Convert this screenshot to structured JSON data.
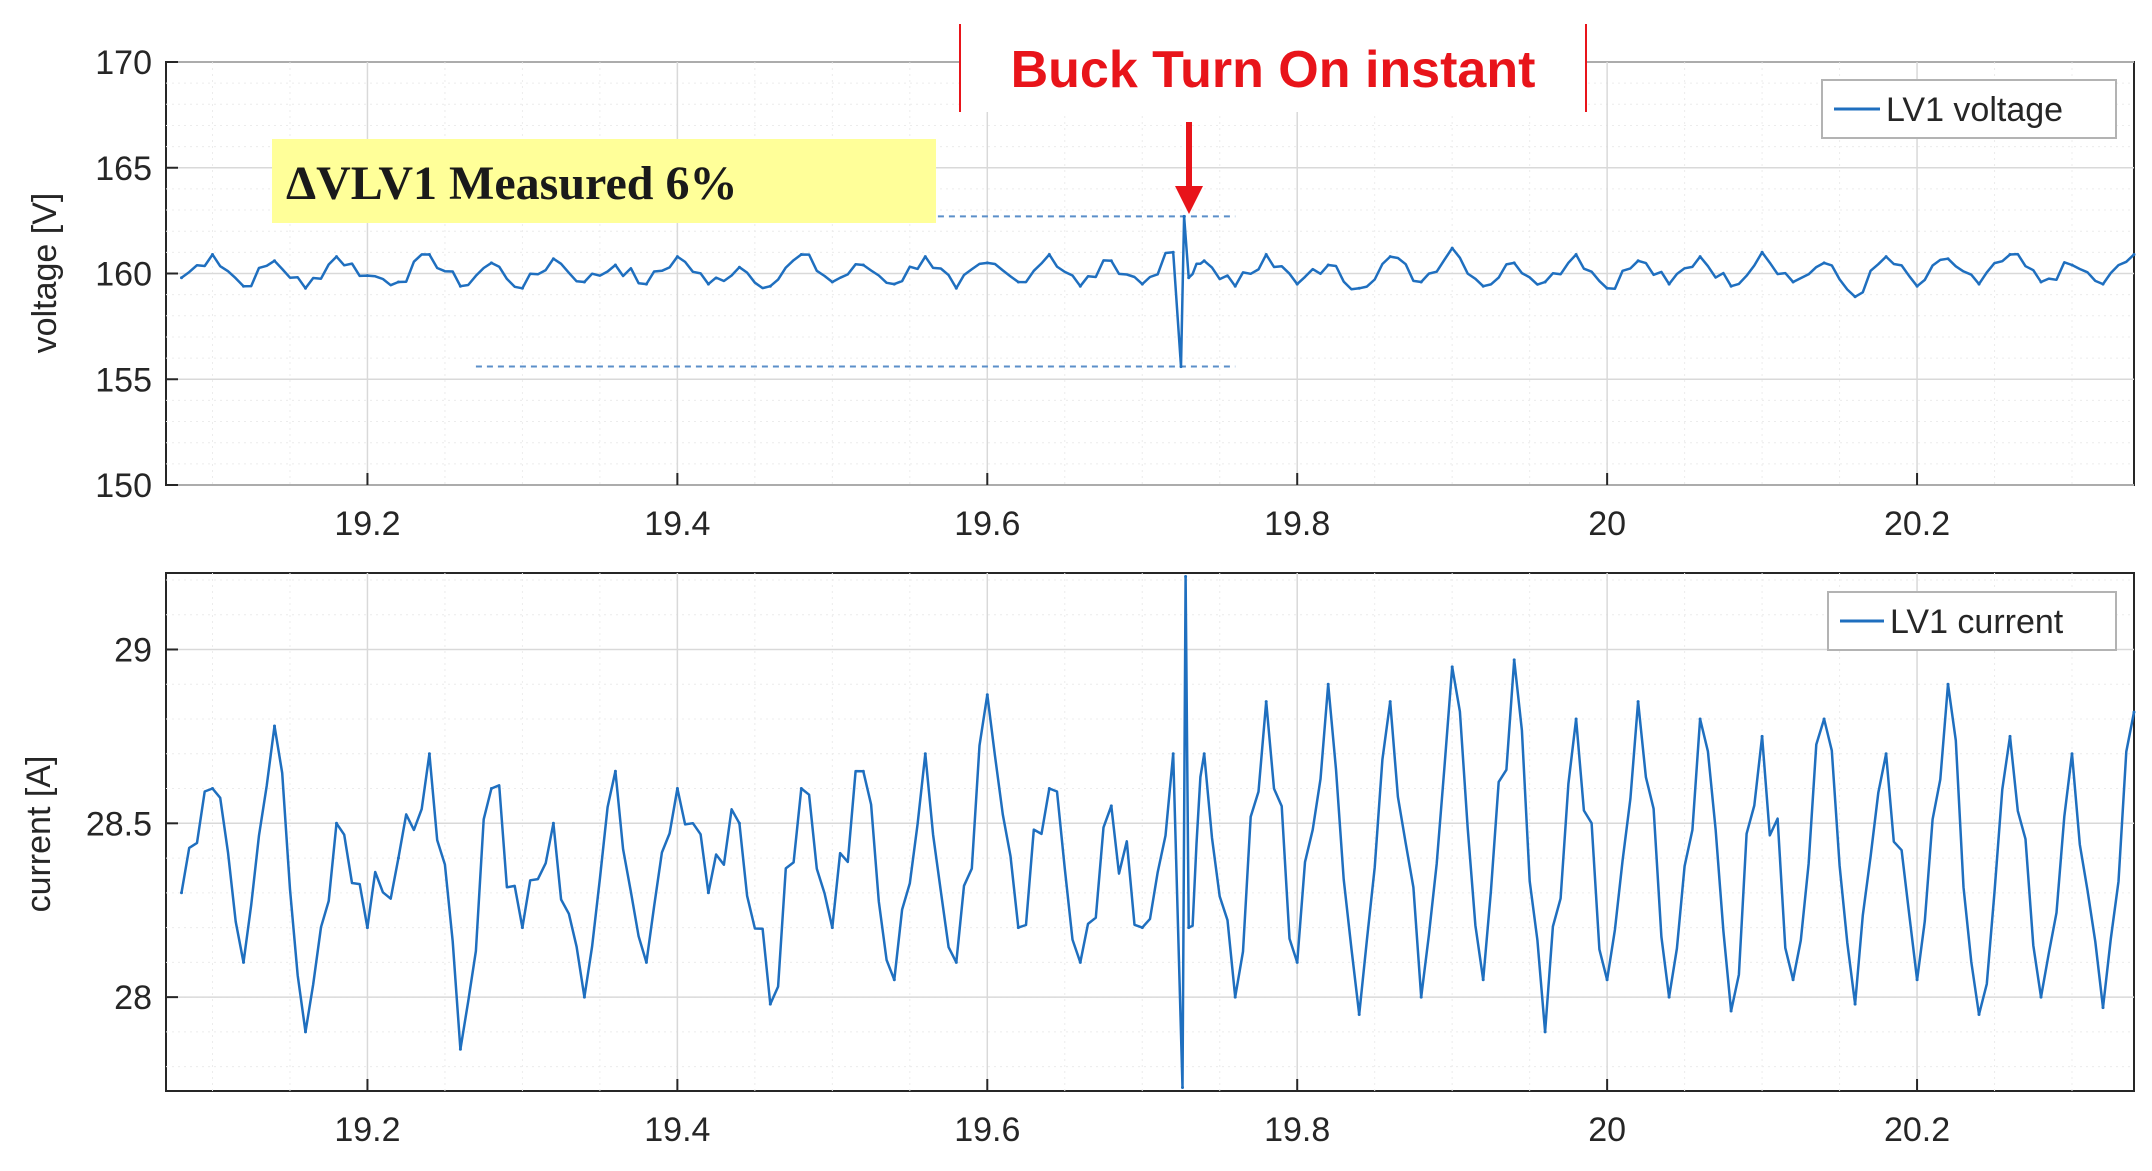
{
  "annotations": {
    "event_label": "Buck Turn On instant",
    "measure_label": "ΔVLV1 Measured 6%",
    "colors": {
      "event": "#e8141a",
      "highlight": "#ffff99",
      "line": "#1f6fbf",
      "grid": "#d9d9d9",
      "axis": "#262626"
    }
  },
  "chart_data": [
    {
      "type": "line",
      "title": "",
      "xlabel": "",
      "ylabel": "voltage [V]",
      "xlim": [
        19.07,
        20.34
      ],
      "ylim": [
        150,
        170
      ],
      "x_ticks": [
        "19.2",
        "19.4",
        "19.6",
        "19.8",
        "20",
        "20.2"
      ],
      "y_ticks": [
        "150",
        "155",
        "160",
        "165",
        "170"
      ],
      "grid": true,
      "minor_grid": true,
      "legend_position": "top-right",
      "series": [
        {
          "name": "LV1 voltage",
          "x": [
            19.08,
            19.1,
            19.12,
            19.14,
            19.16,
            19.18,
            19.2,
            19.22,
            19.24,
            19.26,
            19.28,
            19.3,
            19.32,
            19.34,
            19.36,
            19.38,
            19.4,
            19.42,
            19.44,
            19.46,
            19.48,
            19.5,
            19.52,
            19.54,
            19.56,
            19.58,
            19.6,
            19.62,
            19.64,
            19.66,
            19.68,
            19.7,
            19.72,
            19.725,
            19.727,
            19.73,
            19.74,
            19.76,
            19.78,
            19.8,
            19.82,
            19.84,
            19.86,
            19.88,
            19.9,
            19.92,
            19.94,
            19.96,
            19.98,
            20.0,
            20.02,
            20.04,
            20.06,
            20.08,
            20.1,
            20.12,
            20.14,
            20.16,
            20.18,
            20.2,
            20.22,
            20.24,
            20.26,
            20.28,
            20.3,
            20.32,
            20.34
          ],
          "values": [
            159.8,
            160.9,
            159.4,
            160.6,
            159.3,
            160.8,
            159.9,
            159.6,
            160.9,
            159.4,
            160.5,
            159.3,
            160.7,
            159.6,
            160.4,
            159.5,
            160.8,
            159.5,
            160.3,
            159.4,
            160.9,
            159.6,
            160.4,
            159.5,
            160.8,
            159.3,
            160.5,
            159.6,
            160.9,
            159.4,
            160.6,
            159.5,
            161.0,
            155.6,
            162.7,
            159.8,
            160.6,
            159.4,
            160.9,
            159.5,
            160.4,
            159.3,
            160.8,
            159.6,
            161.2,
            159.4,
            160.5,
            159.6,
            160.9,
            159.3,
            160.6,
            159.5,
            160.8,
            159.4,
            161.0,
            159.6,
            160.5,
            158.9,
            160.8,
            159.4,
            160.7,
            159.5,
            160.9,
            159.6,
            160.4,
            159.5,
            160.9
          ]
        }
      ]
    },
    {
      "type": "line",
      "title": "",
      "xlabel": "",
      "ylabel": "current [A]",
      "xlim": [
        19.07,
        20.34
      ],
      "ylim": [
        27.73,
        29.22
      ],
      "x_ticks": [
        "19.2",
        "19.4",
        "19.6",
        "19.8",
        "20",
        "20.2"
      ],
      "y_ticks": [
        "28",
        "28.5",
        "29"
      ],
      "grid": true,
      "minor_grid": true,
      "legend_position": "top-right",
      "series": [
        {
          "name": "LV1 current",
          "x": [
            19.08,
            19.1,
            19.12,
            19.14,
            19.16,
            19.18,
            19.2,
            19.22,
            19.24,
            19.26,
            19.28,
            19.3,
            19.32,
            19.34,
            19.36,
            19.38,
            19.4,
            19.42,
            19.44,
            19.46,
            19.48,
            19.5,
            19.52,
            19.54,
            19.56,
            19.58,
            19.6,
            19.62,
            19.64,
            19.66,
            19.68,
            19.7,
            19.72,
            19.726,
            19.728,
            19.73,
            19.74,
            19.76,
            19.78,
            19.8,
            19.82,
            19.84,
            19.86,
            19.88,
            19.9,
            19.92,
            19.94,
            19.96,
            19.98,
            20.0,
            20.02,
            20.04,
            20.06,
            20.08,
            20.1,
            20.12,
            20.14,
            20.16,
            20.18,
            20.2,
            20.22,
            20.24,
            20.26,
            20.28,
            20.3,
            20.32,
            20.34
          ],
          "values": [
            28.3,
            28.6,
            28.1,
            28.78,
            27.9,
            28.5,
            28.2,
            28.4,
            28.7,
            27.85,
            28.6,
            28.2,
            28.5,
            28.0,
            28.65,
            28.1,
            28.6,
            28.3,
            28.5,
            27.98,
            28.6,
            28.2,
            28.65,
            28.05,
            28.7,
            28.1,
            28.87,
            28.2,
            28.6,
            28.1,
            28.55,
            28.2,
            28.7,
            27.74,
            29.21,
            28.2,
            28.7,
            28.0,
            28.85,
            28.1,
            28.9,
            27.95,
            28.85,
            28.0,
            28.95,
            28.05,
            28.97,
            27.9,
            28.8,
            28.05,
            28.85,
            28.0,
            28.8,
            27.96,
            28.75,
            28.05,
            28.8,
            27.98,
            28.7,
            28.05,
            28.9,
            27.95,
            28.75,
            28.0,
            28.7,
            27.97,
            28.82
          ]
        }
      ]
    }
  ]
}
